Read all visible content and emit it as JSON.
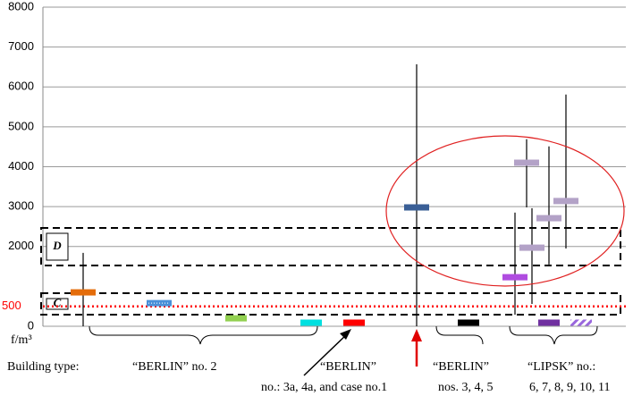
{
  "chart_data": {
    "type": "range",
    "y_label": "f/m³",
    "ylim": [
      0,
      8000
    ],
    "yticks": [
      0,
      2000,
      3000,
      4000,
      5000,
      6000,
      7000,
      8000
    ],
    "grid": true,
    "reference_line": {
      "value": 500,
      "label": "500",
      "color": "#ff0000"
    },
    "zones": [
      {
        "label": "D"
      },
      {
        "label": "C"
      }
    ],
    "series": [
      {
        "color": "#e46c0a",
        "values": [
          850
        ],
        "errors": [
          [
            0,
            1840
          ]
        ]
      },
      {
        "color": "#4a90d9",
        "values": [
          580
        ]
      },
      {
        "color": "#92d050",
        "values": [
          200
        ]
      },
      {
        "color": "#00e0e0",
        "values": [
          90
        ]
      },
      {
        "color": "#ff0000",
        "values": [
          90
        ]
      },
      {
        "color": "#3a5f96",
        "values": [
          2980
        ],
        "errors": [
          [
            0,
            6570
          ]
        ]
      },
      {
        "color": "#000000",
        "values": [
          90
        ]
      },
      {
        "color": "#b04ce0",
        "values": [
          1230
        ],
        "errors": [
          [
            290,
            2850
          ]
        ]
      },
      {
        "color": "#b3a2c7",
        "values": [
          4100
        ],
        "errors": [
          [
            2980,
            4690
          ]
        ]
      },
      {
        "color": "#b3a2c7",
        "values": [
          1970
        ],
        "errors": [
          [
            560,
            2960
          ]
        ]
      },
      {
        "color": "#b3a2c7",
        "values": [
          2710
        ],
        "errors": [
          [
            1550,
            4510
          ]
        ]
      },
      {
        "color": "#b3a2c7",
        "values": [
          3140
        ],
        "errors": [
          [
            1950,
            5810
          ]
        ]
      },
      {
        "color": "#7030a0",
        "values": [
          90
        ]
      },
      {
        "color": "#9966dd",
        "values": [
          90
        ]
      }
    ],
    "annotations": [
      "Building type:",
      "“BERLIN” no. 2",
      "“BERLIN”",
      "no.: 3a, 4a,  and case no.1",
      "“BERLIN”",
      "nos. 3, 4, 5",
      "“LIPSK” no.:",
      "6, 7, 8, 9, 10, 11"
    ]
  }
}
